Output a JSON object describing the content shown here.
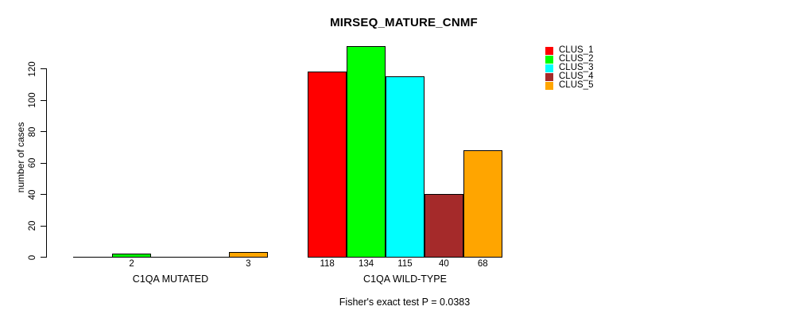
{
  "chart_data": {
    "type": "bar",
    "title": "MIRSEQ_MATURE_CNMF",
    "ylabel": "number of cases",
    "xlabel": "",
    "ylim": [
      0,
      134
    ],
    "yticks": [
      0,
      20,
      40,
      60,
      80,
      100,
      120
    ],
    "grid": false,
    "legend_position": "top-right",
    "categories": [
      "C1QA MUTATED",
      "C1QA WILD-TYPE"
    ],
    "series": [
      {
        "name": "CLUS_1",
        "color": "#FF0000",
        "values": [
          0,
          118
        ]
      },
      {
        "name": "CLUS_2",
        "color": "#00FF00",
        "values": [
          2,
          134
        ]
      },
      {
        "name": "CLUS_3",
        "color": "#00FFFF",
        "values": [
          0,
          115
        ]
      },
      {
        "name": "CLUS_4",
        "color": "#A52A2A",
        "values": [
          0,
          40
        ]
      },
      {
        "name": "CLUS_5",
        "color": "#FFA500",
        "values": [
          3,
          68
        ]
      }
    ],
    "bar_value_labels": [
      [
        "",
        "2",
        "",
        "",
        "3"
      ],
      [
        "118",
        "134",
        "115",
        "40",
        "68"
      ]
    ],
    "footnote": "Fisher's exact test P = 0.0383",
    "axis_color": "#000000",
    "background": "#FFFFFF",
    "bar_border_color": "#000000"
  }
}
